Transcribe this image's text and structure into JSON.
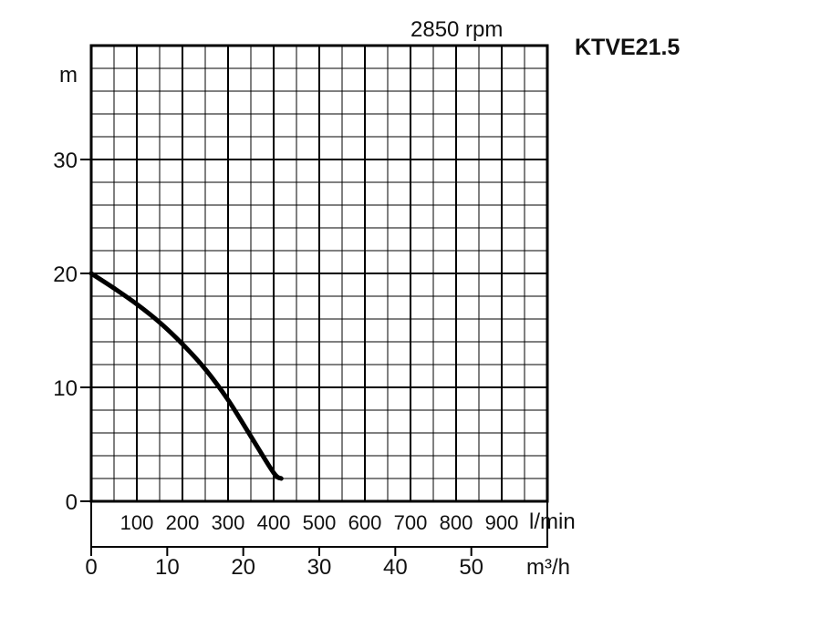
{
  "chart_data": {
    "type": "line",
    "title": "KTVE21.5",
    "subtitle": "2850 rpm",
    "ylabel": "m",
    "xlabel": "m³/h",
    "x2label": "l/min",
    "ylim": [
      0,
      40
    ],
    "xlim": [
      0,
      60
    ],
    "grid": true,
    "yticks": [
      "0",
      "10",
      "20",
      "30"
    ],
    "xticks": [
      {
        "value": 0,
        "label": "0"
      },
      {
        "value": 10,
        "label": "10"
      },
      {
        "value": 20,
        "label": "20"
      },
      {
        "value": 30,
        "label": "30"
      },
      {
        "value": 40,
        "label": "40"
      },
      {
        "value": 50,
        "label": "50"
      }
    ],
    "x2ticks": [
      {
        "value": 100,
        "label": "100"
      },
      {
        "value": 200,
        "label": "200"
      },
      {
        "value": 300,
        "label": "300"
      },
      {
        "value": 400,
        "label": "400"
      },
      {
        "value": 500,
        "label": "500"
      },
      {
        "value": 600,
        "label": "600"
      },
      {
        "value": 700,
        "label": "700"
      },
      {
        "value": 800,
        "label": "800"
      },
      {
        "value": 900,
        "label": "900"
      }
    ],
    "series": [
      {
        "x": [
          0,
          3,
          6,
          9,
          12,
          15,
          18,
          21,
          24,
          25
        ],
        "y": [
          20,
          18.7,
          17.3,
          15.7,
          13.8,
          11.6,
          8.9,
          5.7,
          2.5,
          2
        ]
      }
    ],
    "line_color": "#000000"
  }
}
